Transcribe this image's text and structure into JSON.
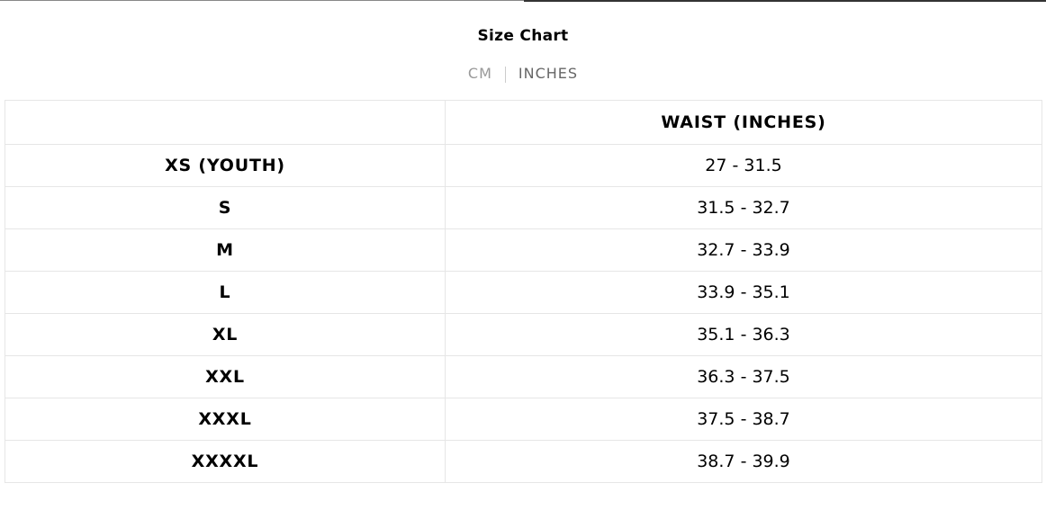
{
  "title": "Size Chart",
  "units": {
    "cm": "CM",
    "inches": "INCHES",
    "active": "inches"
  },
  "table": {
    "headers": [
      "",
      "WAIST (INCHES)"
    ],
    "rows": [
      {
        "size": "XS (YOUTH)",
        "waist": "27 - 31.5"
      },
      {
        "size": "S",
        "waist": "31.5 - 32.7"
      },
      {
        "size": "M",
        "waist": "32.7 - 33.9"
      },
      {
        "size": "L",
        "waist": "33.9 - 35.1"
      },
      {
        "size": "XL",
        "waist": "35.1 - 36.3"
      },
      {
        "size": "XXL",
        "waist": "36.3 - 37.5"
      },
      {
        "size": "XXXL",
        "waist": "37.5 - 38.7"
      },
      {
        "size": "XXXXL",
        "waist": "38.7 - 39.9"
      }
    ]
  }
}
